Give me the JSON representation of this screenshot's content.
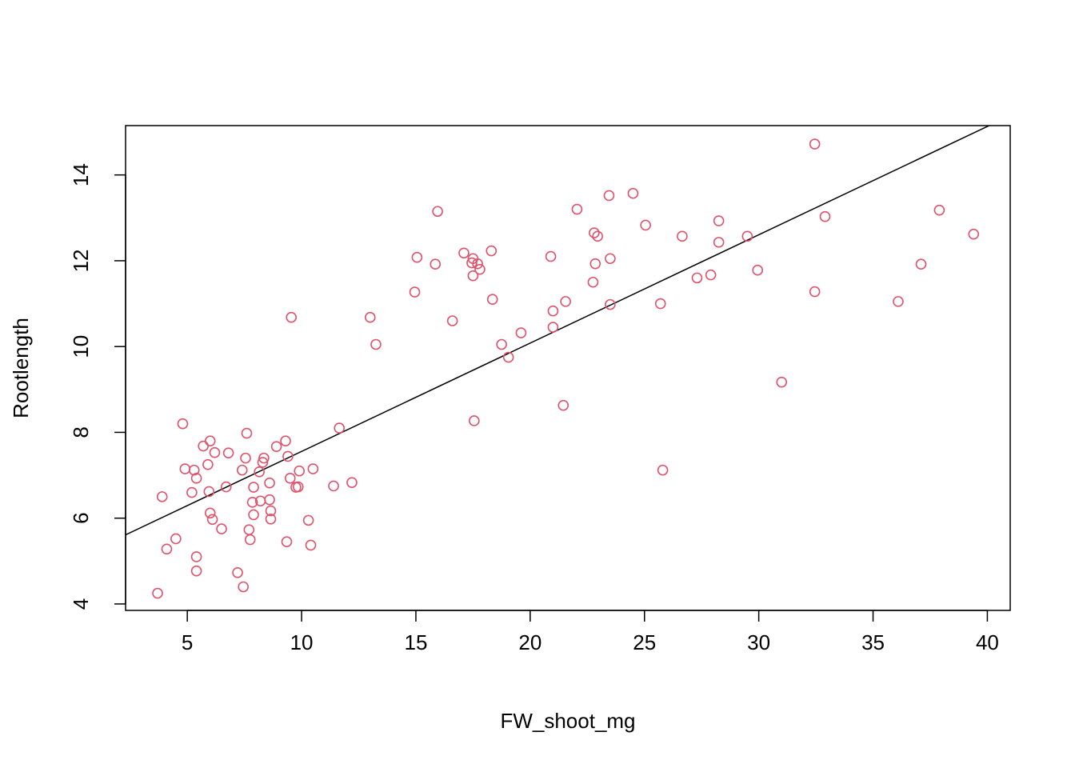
{
  "chart_data": {
    "type": "scatter",
    "title": "",
    "xlabel": "FW_shoot_mg",
    "ylabel": "Rootlength",
    "xlim": [
      2.3,
      41.0
    ],
    "ylim": [
      3.85,
      15.15
    ],
    "x_ticks": [
      5,
      10,
      15,
      20,
      25,
      30,
      35,
      40
    ],
    "y_ticks": [
      4,
      6,
      8,
      10,
      12,
      14
    ],
    "x_tick_labels": [
      "5",
      "10",
      "15",
      "20",
      "25",
      "30",
      "35",
      "40"
    ],
    "y_tick_labels": [
      "4",
      "6",
      "8",
      "10",
      "12",
      "14"
    ],
    "grid": false,
    "legend": "none",
    "point_color": "#DF536B",
    "line_color": "#000000",
    "series": [
      {
        "values": [
          {
            "x": 3.7,
            "y": 4.25
          },
          {
            "x": 3.9,
            "y": 6.5
          },
          {
            "x": 4.1,
            "y": 5.28
          },
          {
            "x": 4.5,
            "y": 5.52
          },
          {
            "x": 4.8,
            "y": 8.2
          },
          {
            "x": 4.9,
            "y": 7.15
          },
          {
            "x": 5.2,
            "y": 6.6
          },
          {
            "x": 5.3,
            "y": 7.12
          },
          {
            "x": 5.4,
            "y": 4.77
          },
          {
            "x": 5.4,
            "y": 5.1
          },
          {
            "x": 5.4,
            "y": 6.93
          },
          {
            "x": 5.7,
            "y": 7.68
          },
          {
            "x": 5.9,
            "y": 7.25
          },
          {
            "x": 5.95,
            "y": 6.62
          },
          {
            "x": 6.0,
            "y": 6.12
          },
          {
            "x": 6.0,
            "y": 7.8
          },
          {
            "x": 6.1,
            "y": 5.97
          },
          {
            "x": 6.2,
            "y": 7.53
          },
          {
            "x": 6.5,
            "y": 5.75
          },
          {
            "x": 6.7,
            "y": 6.73
          },
          {
            "x": 6.8,
            "y": 7.52
          },
          {
            "x": 7.2,
            "y": 4.73
          },
          {
            "x": 7.4,
            "y": 7.12
          },
          {
            "x": 7.45,
            "y": 4.4
          },
          {
            "x": 7.55,
            "y": 7.4
          },
          {
            "x": 7.6,
            "y": 7.98
          },
          {
            "x": 7.7,
            "y": 5.73
          },
          {
            "x": 7.75,
            "y": 5.5
          },
          {
            "x": 7.85,
            "y": 6.37
          },
          {
            "x": 7.9,
            "y": 6.72
          },
          {
            "x": 7.9,
            "y": 6.08
          },
          {
            "x": 8.15,
            "y": 7.08
          },
          {
            "x": 8.2,
            "y": 6.4
          },
          {
            "x": 8.3,
            "y": 7.3
          },
          {
            "x": 8.35,
            "y": 7.4
          },
          {
            "x": 8.6,
            "y": 6.43
          },
          {
            "x": 8.6,
            "y": 6.82
          },
          {
            "x": 8.65,
            "y": 6.17
          },
          {
            "x": 8.65,
            "y": 5.98
          },
          {
            "x": 8.9,
            "y": 7.67
          },
          {
            "x": 9.3,
            "y": 7.8
          },
          {
            "x": 9.35,
            "y": 5.45
          },
          {
            "x": 9.4,
            "y": 7.44
          },
          {
            "x": 9.5,
            "y": 6.93
          },
          {
            "x": 9.55,
            "y": 10.68
          },
          {
            "x": 9.75,
            "y": 6.72
          },
          {
            "x": 9.85,
            "y": 6.73
          },
          {
            "x": 9.9,
            "y": 7.1
          },
          {
            "x": 10.3,
            "y": 5.95
          },
          {
            "x": 10.4,
            "y": 5.37
          },
          {
            "x": 10.5,
            "y": 7.15
          },
          {
            "x": 11.4,
            "y": 6.75
          },
          {
            "x": 11.65,
            "y": 8.1
          },
          {
            "x": 12.2,
            "y": 6.83
          },
          {
            "x": 13.0,
            "y": 10.68
          },
          {
            "x": 13.25,
            "y": 10.05
          },
          {
            "x": 14.95,
            "y": 11.27
          },
          {
            "x": 15.05,
            "y": 12.08
          },
          {
            "x": 15.85,
            "y": 11.92
          },
          {
            "x": 15.95,
            "y": 13.15
          },
          {
            "x": 16.6,
            "y": 10.6
          },
          {
            "x": 17.1,
            "y": 12.18
          },
          {
            "x": 17.45,
            "y": 11.95
          },
          {
            "x": 17.5,
            "y": 12.05
          },
          {
            "x": 17.5,
            "y": 11.65
          },
          {
            "x": 17.55,
            "y": 8.27
          },
          {
            "x": 17.7,
            "y": 11.93
          },
          {
            "x": 17.8,
            "y": 11.8
          },
          {
            "x": 18.3,
            "y": 12.23
          },
          {
            "x": 18.35,
            "y": 11.1
          },
          {
            "x": 18.75,
            "y": 10.05
          },
          {
            "x": 19.05,
            "y": 9.75
          },
          {
            "x": 19.6,
            "y": 10.32
          },
          {
            "x": 20.9,
            "y": 12.1
          },
          {
            "x": 21.0,
            "y": 10.83
          },
          {
            "x": 21.0,
            "y": 10.45
          },
          {
            "x": 21.45,
            "y": 8.63
          },
          {
            "x": 21.55,
            "y": 11.05
          },
          {
            "x": 22.05,
            "y": 13.2
          },
          {
            "x": 22.75,
            "y": 11.5
          },
          {
            "x": 22.8,
            "y": 12.65
          },
          {
            "x": 22.85,
            "y": 11.93
          },
          {
            "x": 22.95,
            "y": 12.57
          },
          {
            "x": 23.45,
            "y": 13.52
          },
          {
            "x": 23.5,
            "y": 12.05
          },
          {
            "x": 23.5,
            "y": 10.98
          },
          {
            "x": 24.5,
            "y": 13.57
          },
          {
            "x": 25.05,
            "y": 12.83
          },
          {
            "x": 25.7,
            "y": 11.0
          },
          {
            "x": 25.8,
            "y": 7.12
          },
          {
            "x": 26.65,
            "y": 12.57
          },
          {
            "x": 27.3,
            "y": 11.6
          },
          {
            "x": 27.9,
            "y": 11.67
          },
          {
            "x": 28.25,
            "y": 12.93
          },
          {
            "x": 28.25,
            "y": 12.43
          },
          {
            "x": 29.5,
            "y": 12.57
          },
          {
            "x": 29.95,
            "y": 11.78
          },
          {
            "x": 31.0,
            "y": 9.17
          },
          {
            "x": 32.45,
            "y": 14.72
          },
          {
            "x": 32.45,
            "y": 11.28
          },
          {
            "x": 32.9,
            "y": 13.03
          },
          {
            "x": 36.1,
            "y": 11.05
          },
          {
            "x": 37.1,
            "y": 11.92
          },
          {
            "x": 37.9,
            "y": 13.18
          },
          {
            "x": 39.4,
            "y": 12.62
          }
        ]
      }
    ],
    "regression_line": {
      "intercept": 5.03,
      "slope": 0.2525
    }
  }
}
